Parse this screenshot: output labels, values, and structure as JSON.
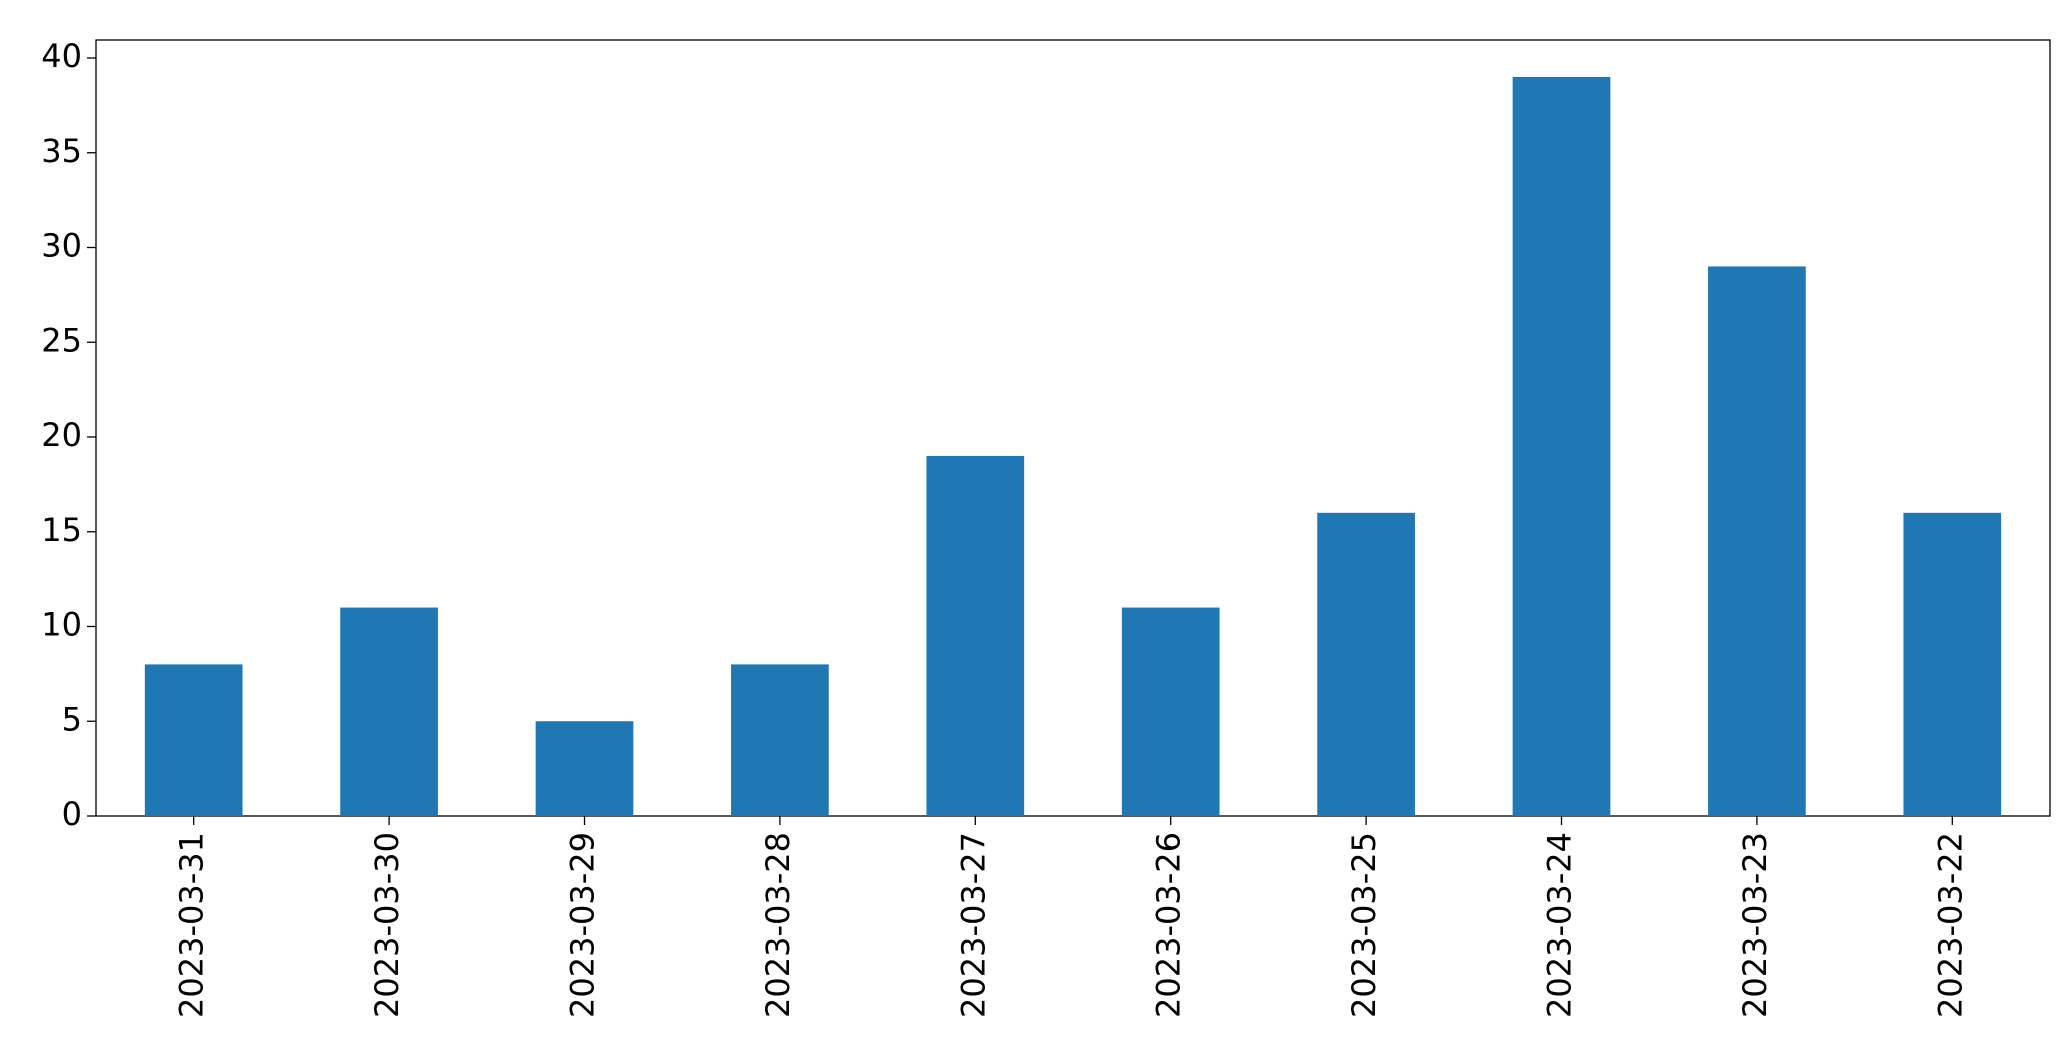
{
  "chart_data": {
    "type": "bar",
    "categories": [
      "2023-03-31",
      "2023-03-30",
      "2023-03-29",
      "2023-03-28",
      "2023-03-27",
      "2023-03-26",
      "2023-03-25",
      "2023-03-24",
      "2023-03-23",
      "2023-03-22"
    ],
    "values": [
      8,
      11,
      5,
      8,
      19,
      11,
      16,
      39,
      29,
      16
    ],
    "color": "#1f77b4",
    "ylim": [
      0,
      40.95
    ],
    "yticks": [
      0,
      5,
      10,
      15,
      20,
      25,
      30,
      35,
      40
    ],
    "grid": false
  }
}
